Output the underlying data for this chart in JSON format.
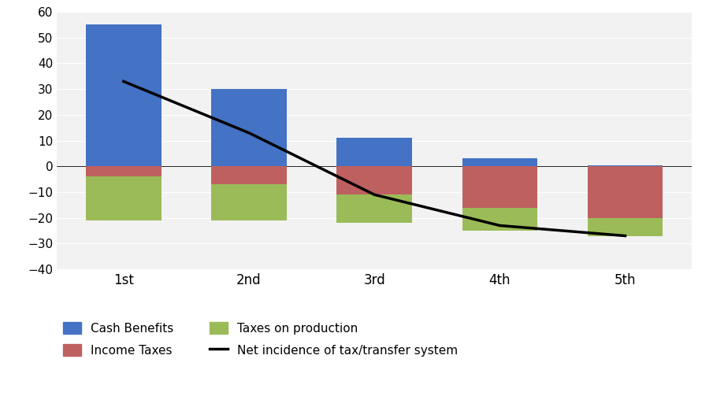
{
  "categories": [
    "1st",
    "2nd",
    "3rd",
    "4th",
    "5th"
  ],
  "cash_benefits": [
    55,
    30,
    11,
    3,
    0.5
  ],
  "income_taxes": [
    -4,
    -7,
    -11,
    -16,
    -20
  ],
  "taxes_on_production": [
    -17,
    -14,
    -11,
    -9,
    -7
  ],
  "net_incidence": [
    33,
    13,
    -11,
    -23,
    -27
  ],
  "colors": {
    "cash_benefits": "#4472C4",
    "income_taxes": "#BE6060",
    "taxes_on_production": "#9BBB59",
    "net_incidence": "#000000"
  },
  "ylim": [
    -40,
    60
  ],
  "yticks": [
    -40,
    -30,
    -20,
    -10,
    0,
    10,
    20,
    30,
    40,
    50,
    60
  ],
  "legend_labels": {
    "cash_benefits": "Cash Benefits",
    "income_taxes": "Income Taxes",
    "taxes_on_production": "Taxes on production",
    "net_incidence": "Net incidence of tax/transfer system"
  },
  "background_color": "#FFFFFF",
  "plot_bg_color": "#F2F2F2",
  "grid_color": "#FFFFFF"
}
